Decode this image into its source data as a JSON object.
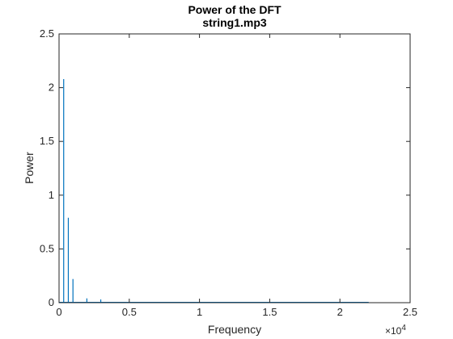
{
  "chart_data": {
    "type": "line",
    "title": "Power of the DFT",
    "subtitle": "string1.mp3",
    "xlabel": "Frequency",
    "ylabel": "Power",
    "xlim": [
      0,
      25000
    ],
    "ylim": [
      0,
      2.5
    ],
    "x_multiplier": {
      "base": "×10",
      "exponent": "4"
    },
    "xticks": [
      0,
      5000,
      10000,
      15000,
      20000,
      25000
    ],
    "xtick_labels": [
      "0",
      "0.5",
      "1",
      "1.5",
      "2",
      "2.5"
    ],
    "yticks": [
      0,
      0.5,
      1,
      1.5,
      2,
      2.5
    ],
    "ytick_labels": [
      "0",
      "0.5",
      "1",
      "1.5",
      "2",
      "2.5"
    ],
    "grid": false,
    "series_color": "#0072BD",
    "data_end_x": 22050,
    "peaks": [
      {
        "x": 330,
        "y": 2.08
      },
      {
        "x": 660,
        "y": 0.79
      },
      {
        "x": 990,
        "y": 0.22
      },
      {
        "x": 1980,
        "y": 0.04
      },
      {
        "x": 2970,
        "y": 0.03
      }
    ]
  }
}
